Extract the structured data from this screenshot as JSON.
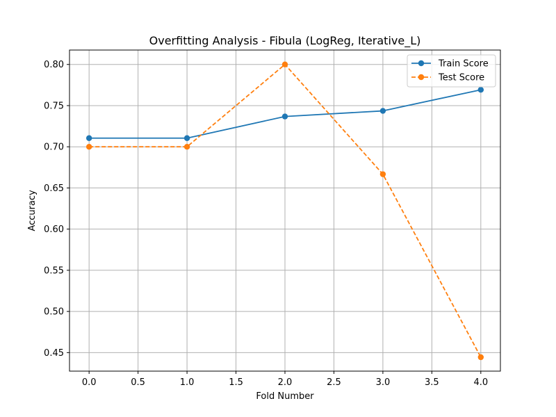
{
  "chart_data": {
    "type": "line",
    "title": "Overfitting Analysis - Fibula (LogReg, Iterative_L)",
    "xlabel": "Fold Number",
    "ylabel": "Accuracy",
    "xlim": [
      -0.2,
      4.2
    ],
    "ylim": [
      0.4275,
      0.8175
    ],
    "xticks": [
      0.0,
      0.5,
      1.0,
      1.5,
      2.0,
      2.5,
      3.0,
      3.5,
      4.0
    ],
    "xtick_labels": [
      "0.0",
      "0.5",
      "1.0",
      "1.5",
      "2.0",
      "2.5",
      "3.0",
      "3.5",
      "4.0"
    ],
    "yticks": [
      0.45,
      0.5,
      0.55,
      0.6,
      0.65,
      0.7,
      0.75,
      0.8
    ],
    "ytick_labels": [
      "0.45",
      "0.50",
      "0.55",
      "0.60",
      "0.65",
      "0.70",
      "0.75",
      "0.80"
    ],
    "grid": true,
    "legend_position": "top-right",
    "x": [
      0,
      1,
      2,
      3,
      4
    ],
    "series": [
      {
        "name": "Train Score",
        "values": [
          0.7105,
          0.7105,
          0.7368,
          0.7436,
          0.7692
        ],
        "color": "#1f77b4",
        "linestyle": "solid",
        "marker": "circle"
      },
      {
        "name": "Test Score",
        "values": [
          0.7,
          0.7,
          0.8,
          0.6667,
          0.4444
        ],
        "color": "#ff7f0e",
        "linestyle": "dashed",
        "marker": "circle"
      }
    ]
  }
}
